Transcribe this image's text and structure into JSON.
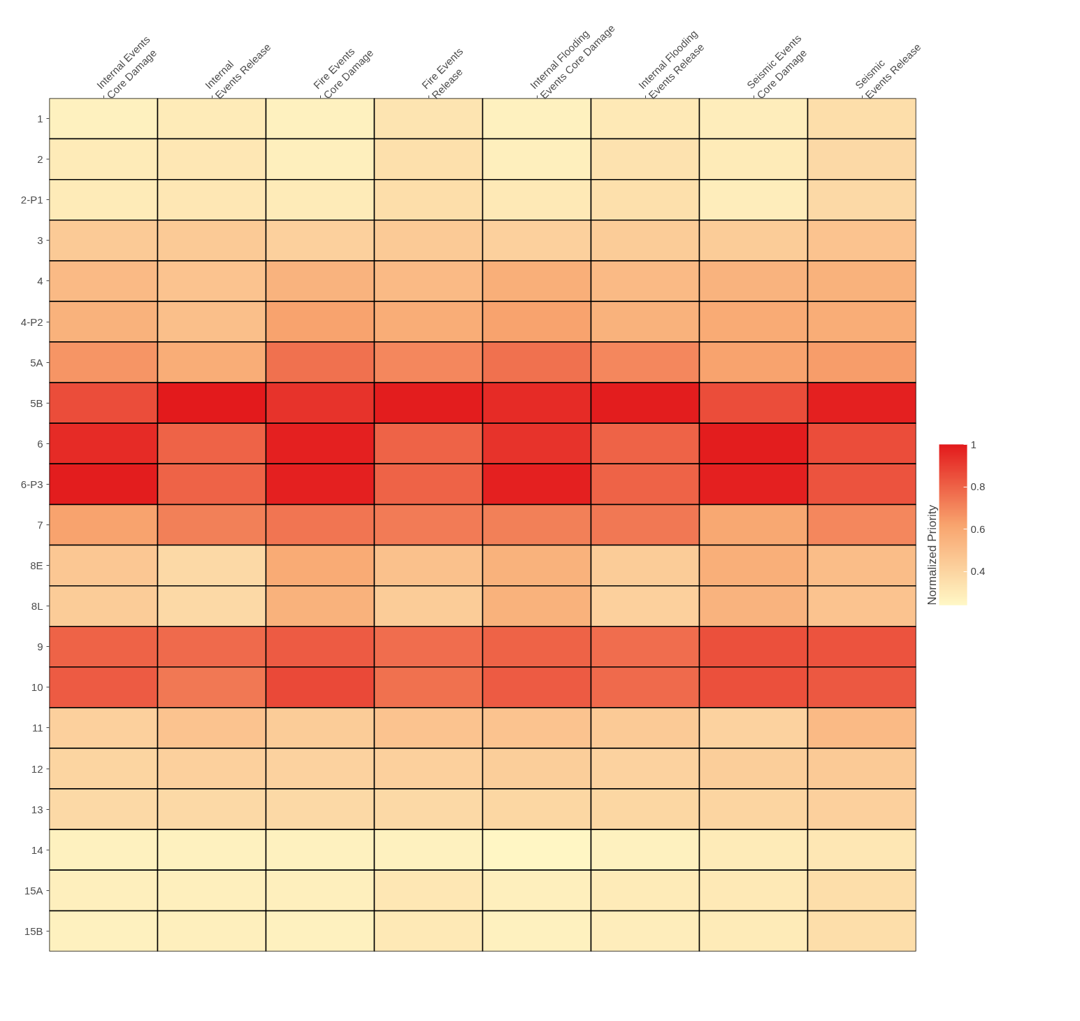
{
  "chart_data": {
    "type": "heatmap",
    "clabel": "Normalized Priority",
    "categories": [
      "Internal Events Core Damage",
      "Internal Events Release",
      "Fire Events Core Damage",
      "Fire Events Release",
      "Internal Flooding Events Core Damage",
      "Internal Flooding Events Release",
      "Seismic Events Core Damage",
      "Seismic Events Release"
    ],
    "y_categories": [
      "1",
      "2",
      "2-P1",
      "3",
      "4",
      "4-P2",
      "5A",
      "5B",
      "6",
      "6-P3",
      "7",
      "8E",
      "8L",
      "9",
      "10",
      "11",
      "12",
      "13",
      "14",
      "15A",
      "15B"
    ],
    "cells": [
      [
        0.27,
        0.3,
        0.27,
        0.33,
        0.27,
        0.31,
        0.29,
        0.36
      ],
      [
        0.3,
        0.32,
        0.28,
        0.35,
        0.28,
        0.34,
        0.3,
        0.38
      ],
      [
        0.3,
        0.32,
        0.3,
        0.36,
        0.31,
        0.35,
        0.29,
        0.38
      ],
      [
        0.45,
        0.45,
        0.42,
        0.45,
        0.42,
        0.44,
        0.44,
        0.48
      ],
      [
        0.52,
        0.48,
        0.55,
        0.52,
        0.57,
        0.52,
        0.55,
        0.56
      ],
      [
        0.56,
        0.5,
        0.62,
        0.58,
        0.62,
        0.56,
        0.59,
        0.58
      ],
      [
        0.66,
        0.58,
        0.76,
        0.7,
        0.76,
        0.7,
        0.62,
        0.64
      ],
      [
        0.86,
        1.0,
        0.93,
        0.99,
        0.95,
        0.99,
        0.86,
        0.98
      ],
      [
        0.95,
        0.8,
        0.98,
        0.8,
        0.93,
        0.8,
        0.99,
        0.86
      ],
      [
        0.99,
        0.8,
        0.98,
        0.8,
        0.98,
        0.8,
        0.98,
        0.84
      ],
      [
        0.62,
        0.72,
        0.75,
        0.73,
        0.72,
        0.74,
        0.6,
        0.7
      ],
      [
        0.46,
        0.38,
        0.59,
        0.49,
        0.56,
        0.44,
        0.57,
        0.51
      ],
      [
        0.44,
        0.38,
        0.56,
        0.44,
        0.56,
        0.42,
        0.55,
        0.48
      ],
      [
        0.8,
        0.78,
        0.82,
        0.77,
        0.8,
        0.77,
        0.85,
        0.84
      ],
      [
        0.82,
        0.74,
        0.87,
        0.76,
        0.82,
        0.78,
        0.85,
        0.83
      ],
      [
        0.42,
        0.48,
        0.44,
        0.48,
        0.48,
        0.45,
        0.41,
        0.52
      ],
      [
        0.4,
        0.42,
        0.41,
        0.42,
        0.43,
        0.41,
        0.43,
        0.45
      ],
      [
        0.38,
        0.38,
        0.38,
        0.38,
        0.39,
        0.39,
        0.4,
        0.42
      ],
      [
        0.27,
        0.27,
        0.27,
        0.27,
        0.25,
        0.27,
        0.3,
        0.32
      ],
      [
        0.28,
        0.28,
        0.28,
        0.32,
        0.28,
        0.3,
        0.31,
        0.36
      ],
      [
        0.27,
        0.28,
        0.27,
        0.31,
        0.27,
        0.29,
        0.3,
        0.36
      ]
    ],
    "clim": [
      0.24,
      1.0
    ],
    "cticks": [
      0.4,
      0.6,
      0.8,
      1.0
    ]
  }
}
